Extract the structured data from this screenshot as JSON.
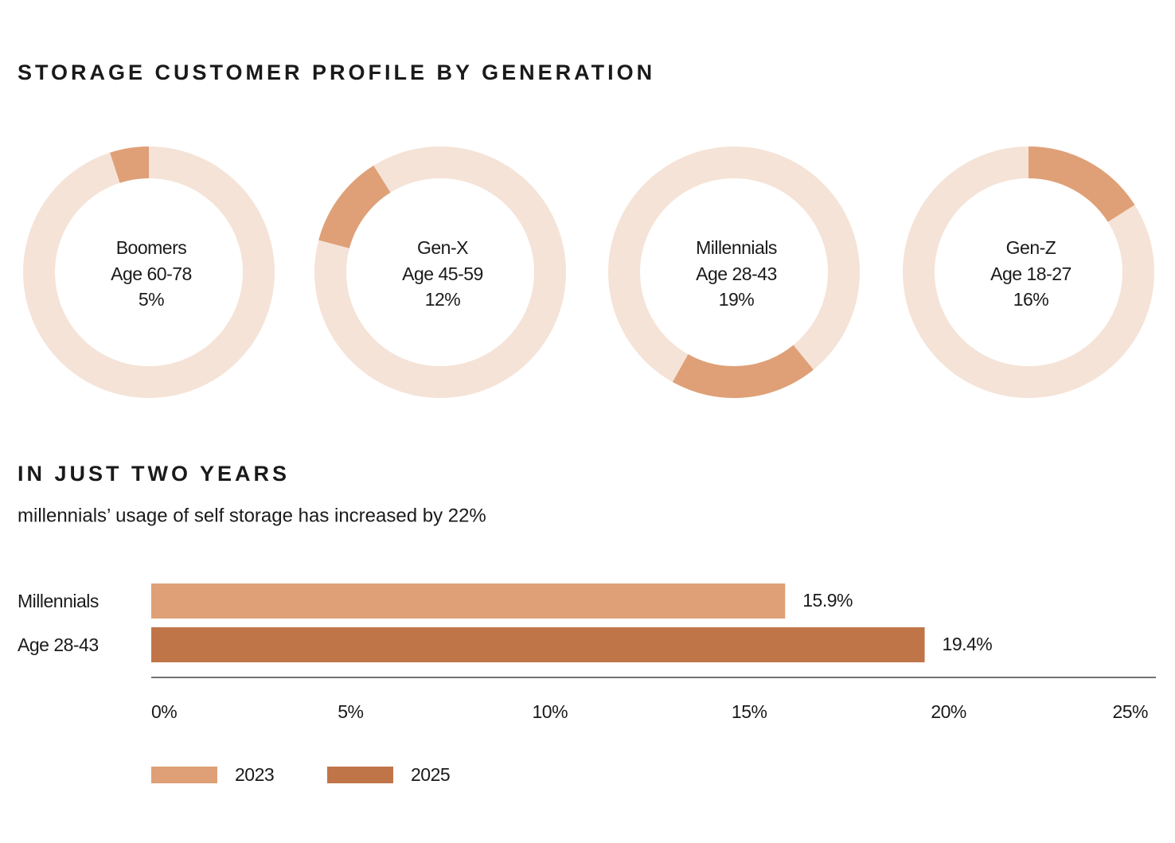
{
  "title": "STORAGE CUSTOMER PROFILE BY GENERATION",
  "chart_data": [
    {
      "type": "donut",
      "name": "Boomers",
      "subtitle": "Age 60-78",
      "values": [
        5
      ],
      "value_labels": [
        "5%"
      ],
      "color": "#dfa077",
      "track_color": "#f5e3d7"
    },
    {
      "type": "donut",
      "name": "Gen-X",
      "subtitle": "Age 45-59",
      "values": [
        12
      ],
      "value_labels": [
        "12%"
      ],
      "color": "#dfa077",
      "track_color": "#f5e3d7"
    },
    {
      "type": "donut",
      "name": "Millennials",
      "subtitle": "Age 28-43",
      "values": [
        19
      ],
      "value_labels": [
        "19%"
      ],
      "color": "#dfa077",
      "track_color": "#f5e3d7"
    },
    {
      "type": "donut",
      "name": "Gen-Z",
      "subtitle": "Age 18-27",
      "values": [
        16
      ],
      "value_labels": [
        "16%"
      ],
      "color": "#dfa077",
      "track_color": "#f5e3d7"
    },
    {
      "type": "bar",
      "orientation": "horizontal",
      "title": "IN JUST TWO YEARS",
      "subtitle": "millennials’ usage of self storage has increased by 22%",
      "categories": [
        {
          "name": "Millennials",
          "subtitle": "Age 28-43"
        }
      ],
      "series": [
        {
          "name": "2023",
          "color": "#dfa077",
          "values": [
            15.9
          ],
          "value_labels": [
            "15.9%"
          ]
        },
        {
          "name": "2025",
          "color": "#c07549",
          "values": [
            19.4
          ],
          "value_labels": [
            "19.4%"
          ]
        }
      ],
      "xlim": [
        0,
        25
      ],
      "xticks": [
        {
          "value": 0,
          "label": "0%"
        },
        {
          "value": 5,
          "label": "5%"
        },
        {
          "value": 10,
          "label": "10%"
        },
        {
          "value": 15,
          "label": "15%"
        },
        {
          "value": 20,
          "label": "20%"
        },
        {
          "value": 25,
          "label": "25%"
        }
      ],
      "legend": "bottom-left"
    }
  ]
}
